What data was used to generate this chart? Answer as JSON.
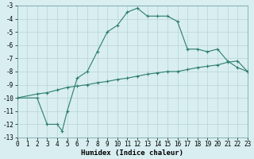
{
  "xlabel": "Humidex (Indice chaleur)",
  "upper_x": [
    0,
    2,
    3,
    4,
    4.5,
    5,
    6,
    7,
    8,
    9,
    10,
    11,
    12,
    13,
    14,
    15,
    16,
    17,
    18,
    19,
    20,
    21,
    22,
    23
  ],
  "upper_y": [
    -10.0,
    -10.0,
    -12.0,
    -12.0,
    -12.5,
    -11.0,
    -8.5,
    -8.0,
    -6.5,
    -5.0,
    -4.5,
    -3.5,
    -3.2,
    -3.8,
    -3.8,
    -3.8,
    -4.2,
    -6.3,
    -6.3,
    -6.5,
    -6.3,
    -7.2,
    -7.7,
    -8.0
  ],
  "lower_x": [
    0,
    2,
    3,
    4,
    5,
    6,
    7,
    8,
    9,
    10,
    11,
    12,
    13,
    14,
    15,
    16,
    17,
    18,
    19,
    20,
    21,
    22,
    23
  ],
  "lower_y": [
    -10.0,
    -9.7,
    -9.6,
    -9.4,
    -9.2,
    -9.1,
    -9.0,
    -8.85,
    -8.75,
    -8.6,
    -8.5,
    -8.35,
    -8.2,
    -8.1,
    -8.0,
    -8.0,
    -7.85,
    -7.7,
    -7.6,
    -7.5,
    -7.3,
    -7.2,
    -8.0
  ],
  "line_color": "#2e7d6e",
  "bg_color": "#d8eef0",
  "grid_color": "#b8d4d8",
  "xlim": [
    0,
    23
  ],
  "ylim": [
    -13,
    -3
  ],
  "xticks": [
    0,
    1,
    2,
    3,
    4,
    5,
    6,
    7,
    8,
    9,
    10,
    11,
    12,
    13,
    14,
    15,
    16,
    17,
    18,
    19,
    20,
    21,
    22,
    23
  ],
  "yticks": [
    -3,
    -4,
    -5,
    -6,
    -7,
    -8,
    -9,
    -10,
    -11,
    -12,
    -13
  ]
}
